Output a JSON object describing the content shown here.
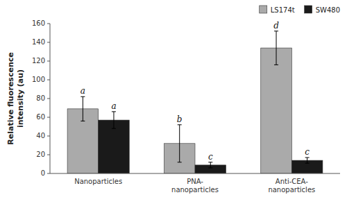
{
  "chart_data": {
    "type": "bar",
    "categories": [
      "Nanoparticles",
      "PNA-\nnanoparticles",
      "Anti-CEA-\nnanoparticles"
    ],
    "series": [
      {
        "name": "LS174t",
        "color": "#AAAAAA",
        "values": [
          69,
          32,
          134
        ],
        "errors": [
          13,
          20,
          18
        ],
        "annotations": [
          "a",
          "b",
          "d"
        ]
      },
      {
        "name": "SW480",
        "color": "#1A1A1A",
        "values": [
          57,
          9,
          14
        ],
        "errors": [
          9,
          3,
          3
        ],
        "annotations": [
          "a",
          "c",
          "c"
        ]
      }
    ],
    "ylabel": "Relative fluorescence\nintensity (au)",
    "ylim": [
      0,
      160
    ],
    "yticks": [
      0,
      20,
      40,
      60,
      80,
      100,
      120,
      140,
      160
    ],
    "grid": false,
    "legend": "upper right"
  }
}
